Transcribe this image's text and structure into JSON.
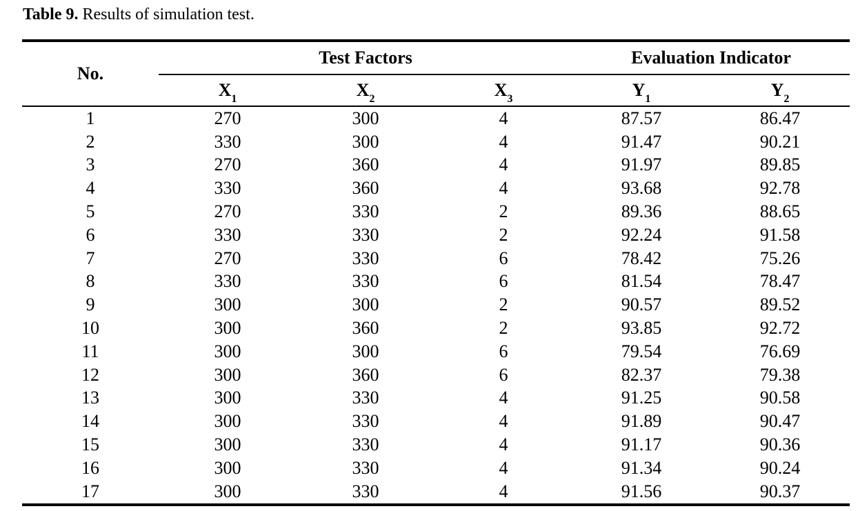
{
  "page": {
    "background": "#ffffff",
    "text_color": "#000000",
    "rule_color": "#000000"
  },
  "caption": {
    "label": "Table 9.",
    "text": "Results of simulation test."
  },
  "table": {
    "header": {
      "no_label": "No.",
      "groups": [
        {
          "label": "Test Factors",
          "span": 3
        },
        {
          "label": "Evaluation Indicator",
          "span": 2
        }
      ],
      "columns": [
        {
          "base": "X",
          "sub": "1"
        },
        {
          "base": "X",
          "sub": "2"
        },
        {
          "base": "X",
          "sub": "3"
        },
        {
          "base": "Y",
          "sub": "1"
        },
        {
          "base": "Y",
          "sub": "2"
        }
      ]
    },
    "rows": [
      {
        "no": "1",
        "x1": "270",
        "x2": "300",
        "x3": "4",
        "y1": "87.57",
        "y2": "86.47"
      },
      {
        "no": "2",
        "x1": "330",
        "x2": "300",
        "x3": "4",
        "y1": "91.47",
        "y2": "90.21"
      },
      {
        "no": "3",
        "x1": "270",
        "x2": "360",
        "x3": "4",
        "y1": "91.97",
        "y2": "89.85"
      },
      {
        "no": "4",
        "x1": "330",
        "x2": "360",
        "x3": "4",
        "y1": "93.68",
        "y2": "92.78"
      },
      {
        "no": "5",
        "x1": "270",
        "x2": "330",
        "x3": "2",
        "y1": "89.36",
        "y2": "88.65"
      },
      {
        "no": "6",
        "x1": "330",
        "x2": "330",
        "x3": "2",
        "y1": "92.24",
        "y2": "91.58"
      },
      {
        "no": "7",
        "x1": "270",
        "x2": "330",
        "x3": "6",
        "y1": "78.42",
        "y2": "75.26"
      },
      {
        "no": "8",
        "x1": "330",
        "x2": "330",
        "x3": "6",
        "y1": "81.54",
        "y2": "78.47"
      },
      {
        "no": "9",
        "x1": "300",
        "x2": "300",
        "x3": "2",
        "y1": "90.57",
        "y2": "89.52"
      },
      {
        "no": "10",
        "x1": "300",
        "x2": "360",
        "x3": "2",
        "y1": "93.85",
        "y2": "92.72"
      },
      {
        "no": "11",
        "x1": "300",
        "x2": "300",
        "x3": "6",
        "y1": "79.54",
        "y2": "76.69"
      },
      {
        "no": "12",
        "x1": "300",
        "x2": "360",
        "x3": "6",
        "y1": "82.37",
        "y2": "79.38"
      },
      {
        "no": "13",
        "x1": "300",
        "x2": "330",
        "x3": "4",
        "y1": "91.25",
        "y2": "90.58"
      },
      {
        "no": "14",
        "x1": "300",
        "x2": "330",
        "x3": "4",
        "y1": "91.89",
        "y2": "90.47"
      },
      {
        "no": "15",
        "x1": "300",
        "x2": "330",
        "x3": "4",
        "y1": "91.17",
        "y2": "90.36"
      },
      {
        "no": "16",
        "x1": "300",
        "x2": "330",
        "x3": "4",
        "y1": "91.34",
        "y2": "90.24"
      },
      {
        "no": "17",
        "x1": "300",
        "x2": "330",
        "x3": "4",
        "y1": "91.56",
        "y2": "90.37"
      }
    ]
  },
  "chart_data": {
    "type": "table",
    "title": "Table 9. Results of simulation test.",
    "column_groups": [
      "No.",
      "Test Factors",
      "Evaluation Indicator"
    ],
    "columns": [
      "No.",
      "X1",
      "X2",
      "X3",
      "Y1",
      "Y2"
    ],
    "rows": [
      [
        1,
        270,
        300,
        4,
        87.57,
        86.47
      ],
      [
        2,
        330,
        300,
        4,
        91.47,
        90.21
      ],
      [
        3,
        270,
        360,
        4,
        91.97,
        89.85
      ],
      [
        4,
        330,
        360,
        4,
        93.68,
        92.78
      ],
      [
        5,
        270,
        330,
        2,
        89.36,
        88.65
      ],
      [
        6,
        330,
        330,
        2,
        92.24,
        91.58
      ],
      [
        7,
        270,
        330,
        6,
        78.42,
        75.26
      ],
      [
        8,
        330,
        330,
        6,
        81.54,
        78.47
      ],
      [
        9,
        300,
        300,
        2,
        90.57,
        89.52
      ],
      [
        10,
        300,
        360,
        2,
        93.85,
        92.72
      ],
      [
        11,
        300,
        300,
        6,
        79.54,
        76.69
      ],
      [
        12,
        300,
        360,
        6,
        82.37,
        79.38
      ],
      [
        13,
        300,
        330,
        4,
        91.25,
        90.58
      ],
      [
        14,
        300,
        330,
        4,
        91.89,
        90.47
      ],
      [
        15,
        300,
        330,
        4,
        91.17,
        90.36
      ],
      [
        16,
        300,
        330,
        4,
        91.34,
        90.24
      ],
      [
        17,
        300,
        330,
        4,
        91.56,
        90.37
      ]
    ]
  }
}
